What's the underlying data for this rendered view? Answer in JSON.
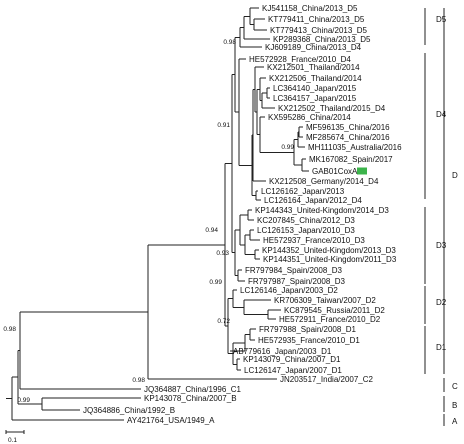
{
  "tree": {
    "tips": [
      {
        "id": "t1",
        "label": "KJ541158_China/2013_D5"
      },
      {
        "id": "t2",
        "label": "KT779411_China/2013_D5"
      },
      {
        "id": "t3",
        "label": "KT779413_China/2013_D5"
      },
      {
        "id": "t4",
        "label": "KP289368_China/2013_D5"
      },
      {
        "id": "t5",
        "label": "KJ609189_China/2013_D4"
      },
      {
        "id": "t6",
        "label": "HE572928_France/2010_D4"
      },
      {
        "id": "t7",
        "label": "KX212501_Thailand/2014"
      },
      {
        "id": "t8",
        "label": "KX212506_Thailand/2014"
      },
      {
        "id": "t9",
        "label": "LC364140_Japan/2015"
      },
      {
        "id": "t10",
        "label": "LC364157_Japan/2015"
      },
      {
        "id": "t11",
        "label": "KX212502_Thailand/2015_D4"
      },
      {
        "id": "t12",
        "label": "KX595286_China/2014"
      },
      {
        "id": "t13",
        "label": "MF596135_China/2016"
      },
      {
        "id": "t14",
        "label": "MF285674_China/2016"
      },
      {
        "id": "t15",
        "label": "MH111035_Australia/2016"
      },
      {
        "id": "t16",
        "label": "MK167082_Spain/2017"
      },
      {
        "id": "t17",
        "label": "GAB01CoxA",
        "highlight": true
      },
      {
        "id": "t18",
        "label": "KX212508_Germany/2014_D4"
      },
      {
        "id": "t19",
        "label": "LC126162_Japan/2013"
      },
      {
        "id": "t20",
        "label": "LC126164_Japan/2012_D4"
      },
      {
        "id": "t21",
        "label": "KP144343_United-Kingdom/2014_D3"
      },
      {
        "id": "t22",
        "label": "KC207845_China/2012_D3"
      },
      {
        "id": "t23",
        "label": "LC126153_Japan/2010_D3"
      },
      {
        "id": "t24",
        "label": "HE572937_France/2010_D3"
      },
      {
        "id": "t25",
        "label": "KP144352_United-Kingdom/2013_D3"
      },
      {
        "id": "t26",
        "label": "KP144351_United-Kingdom/2011_D3"
      },
      {
        "id": "t27",
        "label": "FR797984_Spain/2008_D3"
      },
      {
        "id": "t28",
        "label": "FR797987_Spain/2008_D3"
      },
      {
        "id": "t29",
        "label": "LC126146_Japan/2003_D2"
      },
      {
        "id": "t30",
        "label": "KR706309_Taiwan/2007_D2"
      },
      {
        "id": "t31",
        "label": "KC879545_Russia/2011_D2"
      },
      {
        "id": "t32",
        "label": "HE572911_France/2010_D2"
      },
      {
        "id": "t33",
        "label": "FR797988_Spain/2008_D1"
      },
      {
        "id": "t34",
        "label": "HE572935_France/2010_D1"
      },
      {
        "id": "t35",
        "label": "AB779616_Japan/2003_D1"
      },
      {
        "id": "t36",
        "label": "KP143079_China/2007_D1"
      },
      {
        "id": "t37",
        "label": "LC126147_Japan/2007_D1"
      },
      {
        "id": "t38",
        "label": "JN203517_India/2007_C2"
      },
      {
        "id": "t39",
        "label": "JQ364887_China/1996_C1"
      },
      {
        "id": "t40",
        "label": "KP143078_China/2007_B"
      },
      {
        "id": "t41",
        "label": "JQ364886_China/1992_B"
      },
      {
        "id": "t42",
        "label": "AY421764_USA/1949_A"
      }
    ],
    "bootstrap": [
      {
        "id": "b1",
        "value": "0.98"
      },
      {
        "id": "b2",
        "value": "0.91"
      },
      {
        "id": "b3",
        "value": "0.99"
      },
      {
        "id": "b4",
        "value": "0.94"
      },
      {
        "id": "b5",
        "value": "0.93"
      },
      {
        "id": "b6",
        "value": "0.99"
      },
      {
        "id": "b7",
        "value": "0.72"
      },
      {
        "id": "b8",
        "value": "0.98"
      },
      {
        "id": "b9",
        "value": "0.98"
      },
      {
        "id": "b10",
        "value": "0.99"
      }
    ],
    "subgroups": [
      {
        "id": "g1",
        "label": "D5"
      },
      {
        "id": "g2",
        "label": "D4"
      },
      {
        "id": "g3",
        "label": "D3"
      },
      {
        "id": "g4",
        "label": "D2"
      },
      {
        "id": "g5",
        "label": "D1"
      }
    ],
    "genotypes": [
      {
        "id": "G1",
        "label": "D"
      },
      {
        "id": "G2",
        "label": "C"
      },
      {
        "id": "G3",
        "label": "B"
      },
      {
        "id": "G4",
        "label": "A"
      }
    ],
    "scale": {
      "label": "0.1"
    },
    "colors": {
      "highlight": "#3cb44b",
      "line": "#222222"
    }
  }
}
